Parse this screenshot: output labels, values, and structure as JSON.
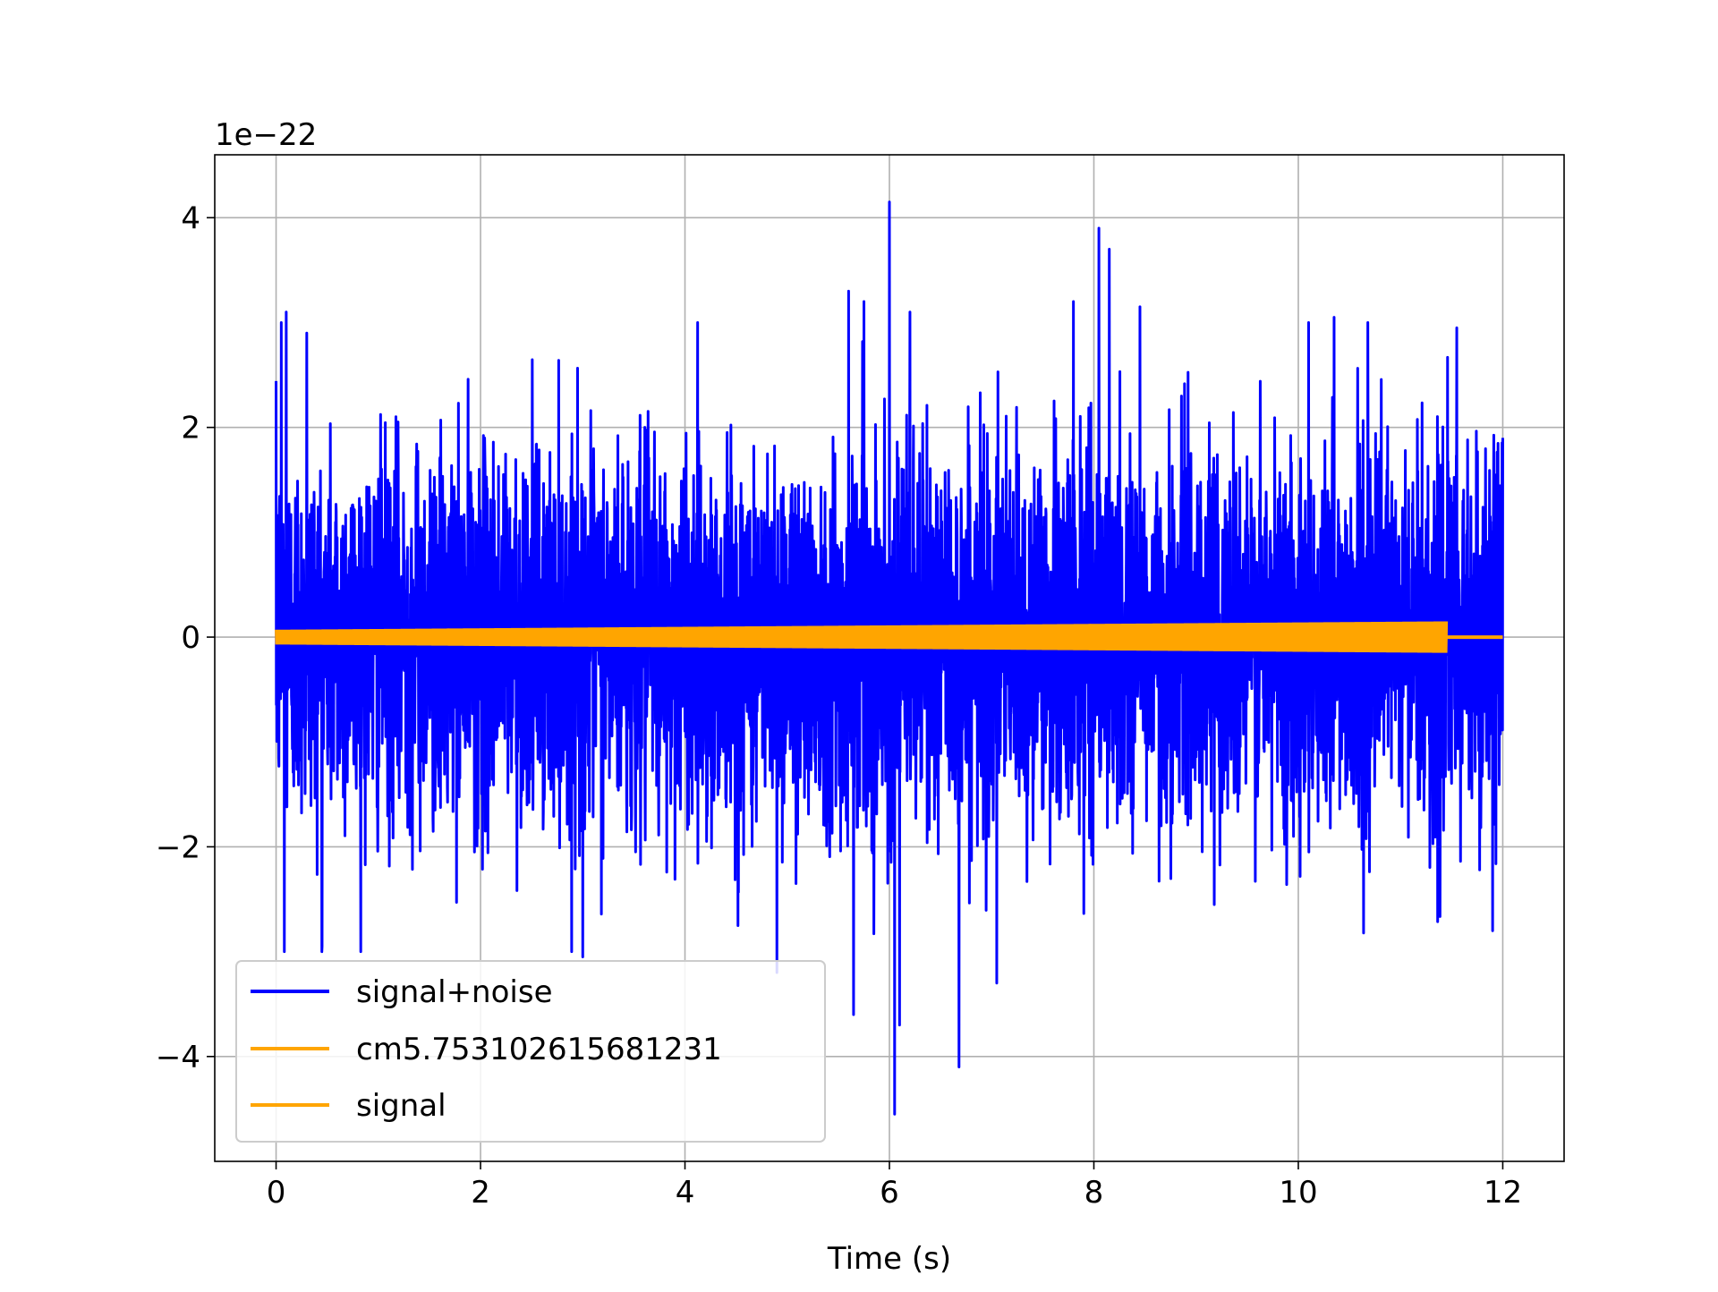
{
  "chart_data": {
    "type": "line",
    "title": "",
    "xlabel": "Time (s)",
    "ylabel": "",
    "y_offset_label": "1e−22",
    "xlim": [
      -0.6,
      12.6
    ],
    "ylim": [
      -5.0,
      4.6
    ],
    "x_ticks": [
      0,
      2,
      4,
      6,
      8,
      10,
      12
    ],
    "x_tick_labels": [
      "0",
      "2",
      "4",
      "6",
      "8",
      "10",
      "12"
    ],
    "y_ticks": [
      -4,
      -2,
      0,
      2,
      4
    ],
    "y_tick_labels": [
      "−4",
      "−2",
      "0",
      "2",
      "4"
    ],
    "grid": true,
    "legend_position": "lower-left",
    "series": [
      {
        "name": "signal+noise",
        "color": "#0000ff",
        "kind": "noise-envelope",
        "x_range": [
          0,
          12
        ],
        "typical_amplitude": 1.6,
        "extreme_peaks": [
          {
            "x": 0.05,
            "y": 3.0
          },
          {
            "x": 0.1,
            "y": 3.1
          },
          {
            "x": 0.3,
            "y": 2.9
          },
          {
            "x": 0.08,
            "y": -3.0
          },
          {
            "x": 0.45,
            "y": -2.95
          },
          {
            "x": 3.0,
            "y": -3.05
          },
          {
            "x": 4.9,
            "y": -3.2
          },
          {
            "x": 5.6,
            "y": 3.3
          },
          {
            "x": 5.65,
            "y": -3.6
          },
          {
            "x": 5.75,
            "y": 3.2
          },
          {
            "x": 6.0,
            "y": 4.15
          },
          {
            "x": 6.05,
            "y": -4.55
          },
          {
            "x": 6.1,
            "y": -3.7
          },
          {
            "x": 6.2,
            "y": 3.1
          },
          {
            "x": 6.68,
            "y": -4.1
          },
          {
            "x": 7.05,
            "y": -3.3
          },
          {
            "x": 7.8,
            "y": 3.2
          },
          {
            "x": 8.05,
            "y": 3.9
          },
          {
            "x": 8.15,
            "y": 3.7
          },
          {
            "x": 8.45,
            "y": 3.15
          },
          {
            "x": 10.1,
            "y": 3.0
          },
          {
            "x": 10.35,
            "y": 3.05
          },
          {
            "x": 11.55,
            "y": 2.95
          },
          {
            "x": 11.9,
            "y": -2.8
          },
          {
            "x": 12.0,
            "y": 1.9
          }
        ]
      },
      {
        "name": "cm5.753102615681231",
        "color": "#ffa500",
        "kind": "chirp",
        "x_range": [
          0,
          11.45
        ],
        "amplitude_start": 0.07,
        "amplitude_end": 0.15
      },
      {
        "name": "signal",
        "color": "#ffa500",
        "kind": "flat",
        "x_range": [
          11.45,
          12.0
        ],
        "value": 0.0
      }
    ]
  }
}
